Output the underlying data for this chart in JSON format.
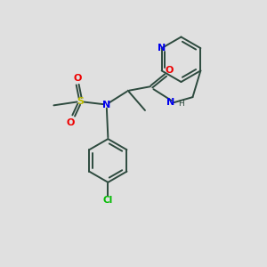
{
  "bg_color": "#e0e0e0",
  "bond_color": "#2d4a3e",
  "N_color": "#0000ee",
  "O_color": "#ee0000",
  "S_color": "#bbbb00",
  "Cl_color": "#00bb00",
  "line_width": 1.4,
  "figsize": [
    3.0,
    3.0
  ],
  "dpi": 100,
  "xlim": [
    0,
    10
  ],
  "ylim": [
    0,
    10
  ]
}
